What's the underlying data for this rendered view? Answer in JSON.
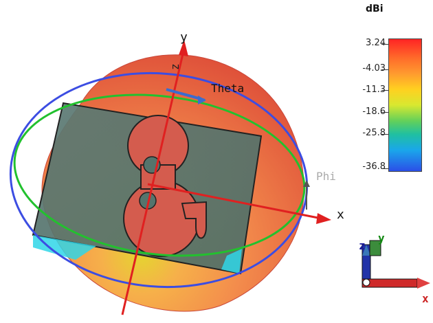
{
  "colorbar": {
    "title": "dBi",
    "ticks": [
      "3.24",
      "-4.03",
      "-11.3",
      "-18.6",
      "-25.8",
      "-36.8"
    ]
  },
  "axes": {
    "x": "x",
    "y": "y",
    "z": "z",
    "theta": "Theta",
    "phi": "Phi"
  },
  "triad": {
    "x": "x",
    "y": "y",
    "z": "z"
  },
  "colors": {
    "pattern_outer": "#e2543d",
    "pattern_inner": "#f38c4c",
    "plate": "#55746c",
    "patch": "#d45c4e",
    "ring_blue": "#3c4de2",
    "ring_green": "#22c12e",
    "axis_red": "#e02020"
  }
}
